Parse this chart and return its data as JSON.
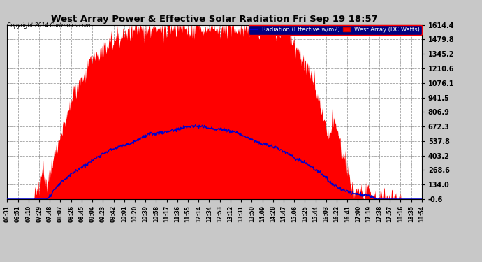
{
  "title": "West Array Power & Effective Solar Radiation Fri Sep 19 18:57",
  "copyright": "Copyright 2014 Cartronics.com",
  "legend_radiation": "Radiation (Effective w/m2)",
  "legend_west": "West Array (DC Watts)",
  "background_color": "#c8c8c8",
  "plot_bg_color": "#ffffff",
  "title_color": "#000000",
  "copyright_color": "#000000",
  "radiation_line_color": "#0000cc",
  "west_array_fill_color": "#ff0000",
  "west_array_line_color": "#cc0000",
  "ymin": -0.6,
  "ymax": 1614.4,
  "yticks": [
    -0.6,
    134.0,
    268.6,
    403.2,
    537.8,
    672.3,
    806.9,
    941.5,
    1076.1,
    1210.6,
    1345.2,
    1479.8,
    1614.4
  ],
  "xtick_labels": [
    "06:31",
    "06:51",
    "07:10",
    "07:29",
    "07:48",
    "08:07",
    "08:26",
    "08:45",
    "09:04",
    "09:23",
    "09:42",
    "10:01",
    "10:20",
    "10:39",
    "10:58",
    "11:17",
    "11:36",
    "11:55",
    "12:14",
    "12:34",
    "12:53",
    "13:12",
    "13:31",
    "13:50",
    "14:09",
    "14:28",
    "14:47",
    "15:06",
    "15:25",
    "15:44",
    "16:03",
    "16:22",
    "16:41",
    "17:00",
    "17:19",
    "17:38",
    "17:57",
    "18:16",
    "18:35",
    "18:54"
  ],
  "n_points": 800
}
